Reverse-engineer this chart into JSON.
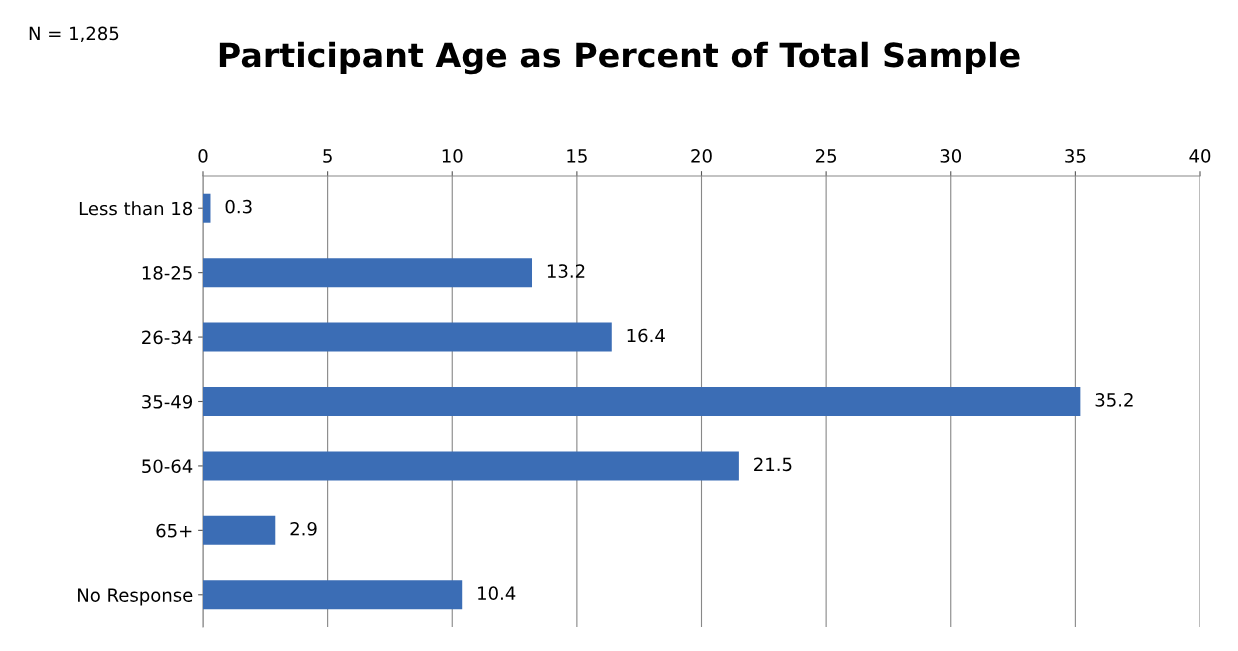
{
  "chart_data": {
    "type": "bar",
    "orientation": "horizontal",
    "title": "Participant Age as Percent of Total Sample",
    "annotations": [
      "N = 1,285"
    ],
    "categories": [
      "Less than 18",
      "18-25",
      "26-34",
      "35-49",
      "50-64",
      "65+",
      "No Response"
    ],
    "values": [
      0.3,
      13.2,
      16.4,
      35.2,
      21.5,
      2.9,
      10.4
    ],
    "color": "#3b6db5",
    "xlim": [
      0,
      40
    ],
    "xticks": [
      0,
      5,
      10,
      15,
      20,
      25,
      30,
      35,
      40
    ],
    "grid": "x",
    "data_labels": true,
    "legend": false
  }
}
